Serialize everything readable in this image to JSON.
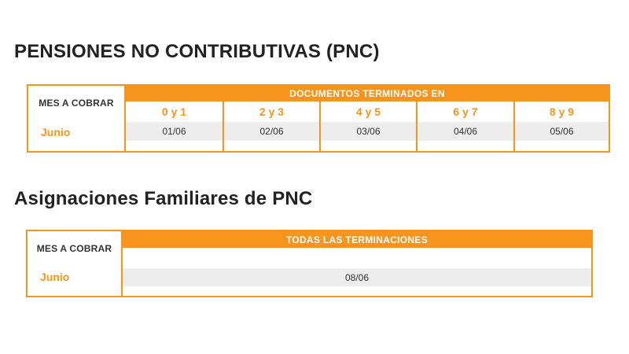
{
  "section1": {
    "title": "PENSIONES NO CONTRIBUTIVAS (PNC)",
    "mes_header": "MES A COBRAR",
    "month": "Junio",
    "group_header": "DOCUMENTOS TERMINADOS EN",
    "columns": [
      {
        "label": "0 y 1",
        "date": "01/06"
      },
      {
        "label": "2 y 3",
        "date": "02/06"
      },
      {
        "label": "4 y 5",
        "date": "03/06"
      },
      {
        "label": "6 y 7",
        "date": "04/06"
      },
      {
        "label": "8 y 9",
        "date": "05/06"
      }
    ]
  },
  "section2": {
    "title": "Asignaciones Familiares de PNC",
    "mes_header": "MES A COBRAR",
    "month": "Junio",
    "group_header": "TODAS LAS TERMINACIONES",
    "date": "08/06"
  },
  "colors": {
    "accent": "#f7941d",
    "row_bg": "#ededed",
    "text": "#222222"
  }
}
